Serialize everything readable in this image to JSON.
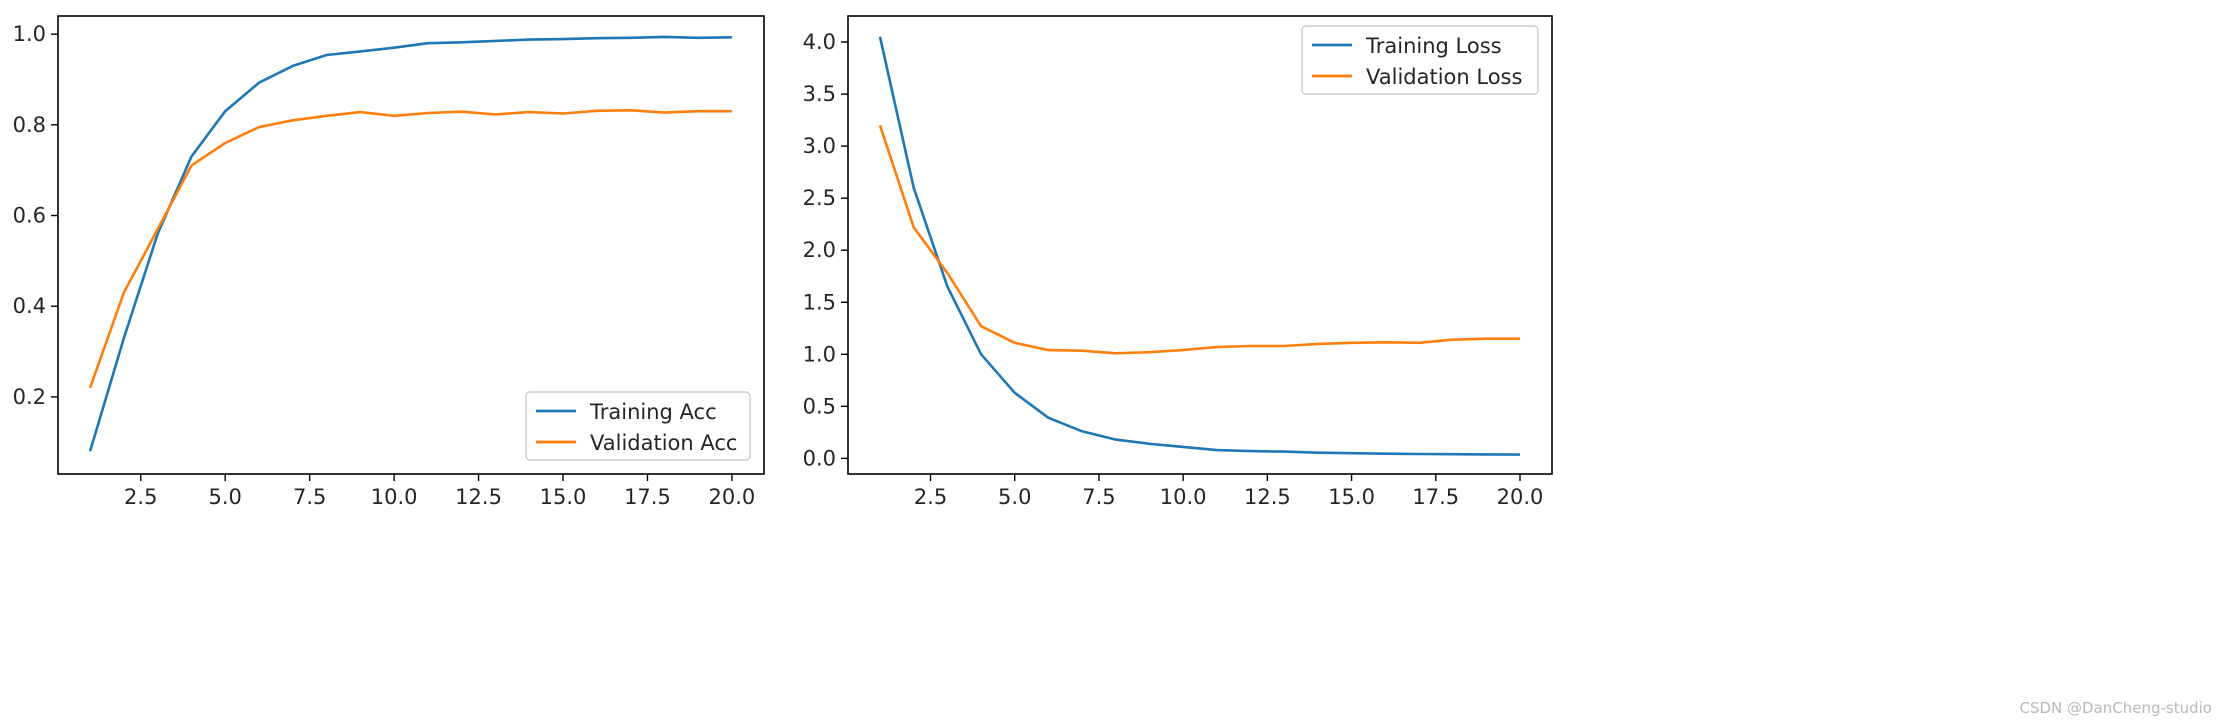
{
  "watermark": "CSDN @DanCheng-studio",
  "colors": {
    "training": "#1f77b4",
    "validation": "#ff7f0e",
    "axis": "#000000",
    "legend_border": "#cccccc"
  },
  "chart_data": [
    {
      "type": "line",
      "title": "",
      "xlabel": "",
      "ylabel": "",
      "xlim": [
        0.05,
        20.95
      ],
      "ylim": [
        0.03,
        1.04
      ],
      "xticks": [
        2.5,
        5.0,
        7.5,
        10.0,
        12.5,
        15.0,
        17.5,
        20.0
      ],
      "xtick_labels": [
        "2.5",
        "5.0",
        "7.5",
        "10.0",
        "12.5",
        "15.0",
        "17.5",
        "20.0"
      ],
      "yticks": [
        0.2,
        0.4,
        0.6,
        0.8,
        1.0
      ],
      "ytick_labels": [
        "0.2",
        "0.4",
        "0.6",
        "0.8",
        "1.0"
      ],
      "legend_position": "lower-right",
      "x": [
        1,
        2,
        3,
        4,
        5,
        6,
        7,
        8,
        9,
        10,
        11,
        12,
        13,
        14,
        15,
        16,
        17,
        18,
        19,
        20
      ],
      "series": [
        {
          "name": "Training Acc",
          "color_key": "training",
          "values": [
            0.08,
            0.33,
            0.56,
            0.73,
            0.83,
            0.893,
            0.93,
            0.954,
            0.962,
            0.97,
            0.98,
            0.982,
            0.985,
            0.988,
            0.989,
            0.991,
            0.992,
            0.994,
            0.992,
            0.993
          ]
        },
        {
          "name": "Validation Acc",
          "color_key": "validation",
          "values": [
            0.22,
            0.43,
            0.57,
            0.71,
            0.76,
            0.795,
            0.81,
            0.82,
            0.828,
            0.82,
            0.826,
            0.829,
            0.823,
            0.828,
            0.825,
            0.831,
            0.832,
            0.827,
            0.83,
            0.83
          ]
        }
      ]
    },
    {
      "type": "line",
      "title": "",
      "xlabel": "",
      "ylabel": "",
      "xlim": [
        0.05,
        20.95
      ],
      "ylim": [
        -0.15,
        4.25
      ],
      "xticks": [
        2.5,
        5.0,
        7.5,
        10.0,
        12.5,
        15.0,
        17.5,
        20.0
      ],
      "xtick_labels": [
        "2.5",
        "5.0",
        "7.5",
        "10.0",
        "12.5",
        "15.0",
        "17.5",
        "20.0"
      ],
      "yticks": [
        0.0,
        0.5,
        1.0,
        1.5,
        2.0,
        2.5,
        3.0,
        3.5,
        4.0
      ],
      "ytick_labels": [
        "0.0",
        "0.5",
        "1.0",
        "1.5",
        "2.0",
        "2.5",
        "3.0",
        "3.5",
        "4.0"
      ],
      "legend_position": "upper-right",
      "x": [
        1,
        2,
        3,
        4,
        5,
        6,
        7,
        8,
        9,
        10,
        11,
        12,
        13,
        14,
        15,
        16,
        17,
        18,
        19,
        20
      ],
      "series": [
        {
          "name": "Training Loss",
          "color_key": "training",
          "values": [
            4.05,
            2.6,
            1.65,
            1.0,
            0.63,
            0.39,
            0.26,
            0.18,
            0.14,
            0.11,
            0.08,
            0.07,
            0.065,
            0.055,
            0.05,
            0.045,
            0.042,
            0.04,
            0.038,
            0.036
          ]
        },
        {
          "name": "Validation Loss",
          "color_key": "validation",
          "values": [
            3.2,
            2.22,
            1.78,
            1.27,
            1.11,
            1.04,
            1.035,
            1.01,
            1.02,
            1.04,
            1.07,
            1.08,
            1.08,
            1.1,
            1.11,
            1.115,
            1.11,
            1.14,
            1.15,
            1.15
          ]
        }
      ]
    }
  ]
}
